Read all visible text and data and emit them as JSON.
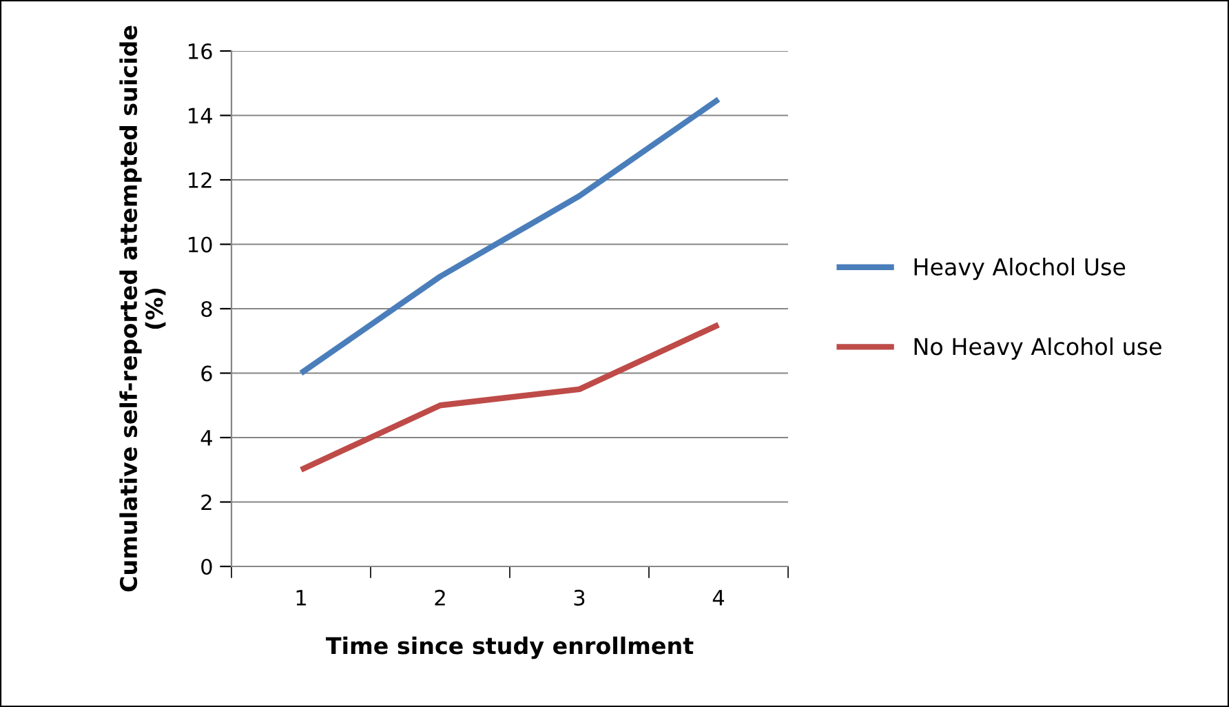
{
  "chart_data": {
    "type": "line",
    "xlabel": "Time since study enrollment",
    "ylabel": "Cumulative self-reported attempted suicide (%)",
    "categories": [
      "1",
      "2",
      "3",
      "4"
    ],
    "series": [
      {
        "name": "Heavy Alochol Use",
        "color": "#4a7ebb",
        "values": [
          6,
          9,
          11.5,
          14.5
        ]
      },
      {
        "name": "No Heavy Alcohol use",
        "color": "#be4b48",
        "values": [
          3,
          5,
          5.5,
          7.5
        ]
      }
    ],
    "ylim": [
      0,
      16
    ],
    "yticks": [
      0,
      2,
      4,
      6,
      8,
      10,
      12,
      14,
      16
    ],
    "grid": "y",
    "legend": "right",
    "marker": "none",
    "line_style": "solid"
  }
}
